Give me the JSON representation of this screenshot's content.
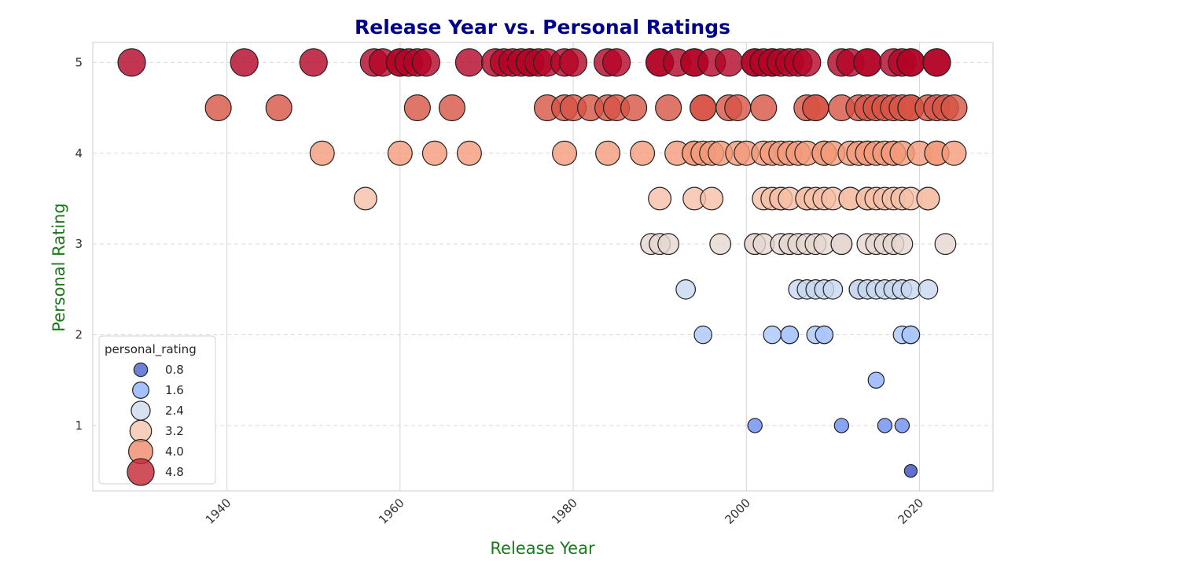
{
  "chart_data": {
    "type": "scatter",
    "title": "Release Year vs. Personal Ratings",
    "xlabel": "Release Year",
    "ylabel": "Personal Rating",
    "xlim": [
      1924.5,
      2028.5
    ],
    "ylim": [
      0.28,
      5.22
    ],
    "x_ticks": [
      1940,
      1960,
      1980,
      2000,
      2020
    ],
    "y_ticks": [
      1,
      2,
      3,
      4,
      5
    ],
    "grid": {
      "x": "solid",
      "y": "dashed"
    },
    "colormap": "coolwarm",
    "legend": {
      "title": "personal_rating",
      "placement": "lower-left",
      "entries": [
        {
          "label": "0.8",
          "value": 0.8,
          "color": "#4a62d0"
        },
        {
          "label": "1.6",
          "value": 1.6,
          "color": "#8fb1fe"
        },
        {
          "label": "2.4",
          "value": 2.4,
          "color": "#cdd9ec"
        },
        {
          "label": "3.2",
          "value": 3.2,
          "color": "#f5c4ac"
        },
        {
          "label": "4.0",
          "value": 4.0,
          "color": "#f08a6c"
        },
        {
          "label": "4.8",
          "value": 4.8,
          "color": "#c42532"
        }
      ]
    },
    "series": [
      {
        "rating": 5.0,
        "color": "#b40426",
        "x": [
          1929,
          1942,
          1950,
          1957,
          1958,
          1960,
          1960,
          1961,
          1962,
          1963,
          1968,
          1971,
          1972,
          1973,
          1974,
          1975,
          1975,
          1976,
          1977,
          1979,
          1980,
          1984,
          1985,
          1990,
          1990,
          1992,
          1994,
          1994,
          1996,
          1998,
          2001,
          2001,
          2002,
          2003,
          2003,
          2004,
          2005,
          2006,
          2007,
          2011,
          2012,
          2014,
          2014,
          2017,
          2018,
          2019,
          2019,
          2022,
          2022
        ]
      },
      {
        "rating": 4.5,
        "color": "#d75445",
        "x": [
          1939,
          1946,
          1962,
          1966,
          1977,
          1979,
          1980,
          1982,
          1984,
          1985,
          1987,
          1991,
          1995,
          1995,
          1998,
          1999,
          2002,
          2007,
          2008,
          2008,
          2011,
          2013,
          2014,
          2015,
          2016,
          2017,
          2018,
          2019,
          2019,
          2021,
          2022,
          2023,
          2024
        ]
      },
      {
        "rating": 4.0,
        "color": "#f49a7b",
        "x": [
          1951,
          1960,
          1964,
          1968,
          1979,
          1984,
          1988,
          1992,
          1994,
          1994,
          1995,
          1996,
          1997,
          1999,
          2000,
          2002,
          2003,
          2004,
          2005,
          2006,
          2007,
          2009,
          2009,
          2010,
          2012,
          2013,
          2014,
          2014,
          2015,
          2016,
          2017,
          2017,
          2018,
          2020,
          2022,
          2022,
          2024
        ]
      },
      {
        "rating": 3.5,
        "color": "#f6bfa6",
        "x": [
          1956,
          1990,
          1994,
          1996,
          2002,
          2003,
          2004,
          2004,
          2005,
          2007,
          2007,
          2008,
          2009,
          2010,
          2012,
          2012,
          2014,
          2014,
          2015,
          2016,
          2017,
          2018,
          2019,
          2021,
          2021
        ]
      },
      {
        "rating": 3.0,
        "color": "#e6d7cf",
        "x": [
          1989,
          1990,
          1991,
          1997,
          2001,
          2001,
          2002,
          2004,
          2005,
          2005,
          2006,
          2007,
          2008,
          2009,
          2011,
          2011,
          2014,
          2015,
          2016,
          2017,
          2018,
          2023
        ]
      },
      {
        "rating": 2.5,
        "color": "#c8d7ef",
        "x": [
          1993,
          2006,
          2007,
          2008,
          2009,
          2010,
          2013,
          2013,
          2014,
          2015,
          2016,
          2017,
          2018,
          2019,
          2021
        ]
      },
      {
        "rating": 2.0,
        "color": "#aac7fd",
        "x": [
          1995,
          2003,
          2005,
          2005,
          2008,
          2009,
          2009,
          2018,
          2019,
          2019
        ]
      },
      {
        "rating": 1.5,
        "color": "#8db0fe",
        "x": [
          2015
        ]
      },
      {
        "rating": 1.0,
        "color": "#6b8df0",
        "x": [
          2001,
          2011,
          2016,
          2018
        ]
      },
      {
        "rating": 0.5,
        "color": "#3b4cc0",
        "x": [
          2019
        ]
      }
    ]
  }
}
